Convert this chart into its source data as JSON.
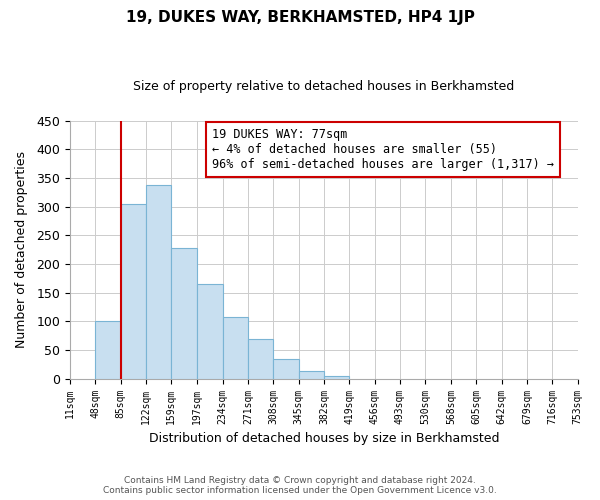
{
  "title": "19, DUKES WAY, BERKHAMSTED, HP4 1JP",
  "subtitle": "Size of property relative to detached houses in Berkhamsted",
  "xlabel": "Distribution of detached houses by size in Berkhamsted",
  "ylabel": "Number of detached properties",
  "bin_labels": [
    "11sqm",
    "48sqm",
    "85sqm",
    "122sqm",
    "159sqm",
    "197sqm",
    "234sqm",
    "271sqm",
    "308sqm",
    "345sqm",
    "382sqm",
    "419sqm",
    "456sqm",
    "493sqm",
    "530sqm",
    "568sqm",
    "605sqm",
    "642sqm",
    "679sqm",
    "716sqm",
    "753sqm"
  ],
  "bar_values": [
    0,
    100,
    305,
    337,
    228,
    165,
    107,
    70,
    34,
    13,
    5,
    0,
    0,
    0,
    0,
    0,
    0,
    0,
    0,
    0
  ],
  "bar_color_main": "#c8dff0",
  "bar_edge_color": "#7ab4d4",
  "property_line_x": 85,
  "annotation_title": "19 DUKES WAY: 77sqm",
  "annotation_line1": "← 4% of detached houses are smaller (55)",
  "annotation_line2": "96% of semi-detached houses are larger (1,317) →",
  "ylim": [
    0,
    450
  ],
  "yticks": [
    0,
    50,
    100,
    150,
    200,
    250,
    300,
    350,
    400,
    450
  ],
  "footer_line1": "Contains HM Land Registry data © Crown copyright and database right 2024.",
  "footer_line2": "Contains public sector information licensed under the Open Government Licence v3.0.",
  "background_color": "#ffffff",
  "annotation_box_color": "#ffffff",
  "annotation_box_edge": "#cc0000",
  "property_line_color": "#cc0000",
  "grid_color": "#cccccc",
  "title_fontsize": 11,
  "subtitle_fontsize": 9
}
